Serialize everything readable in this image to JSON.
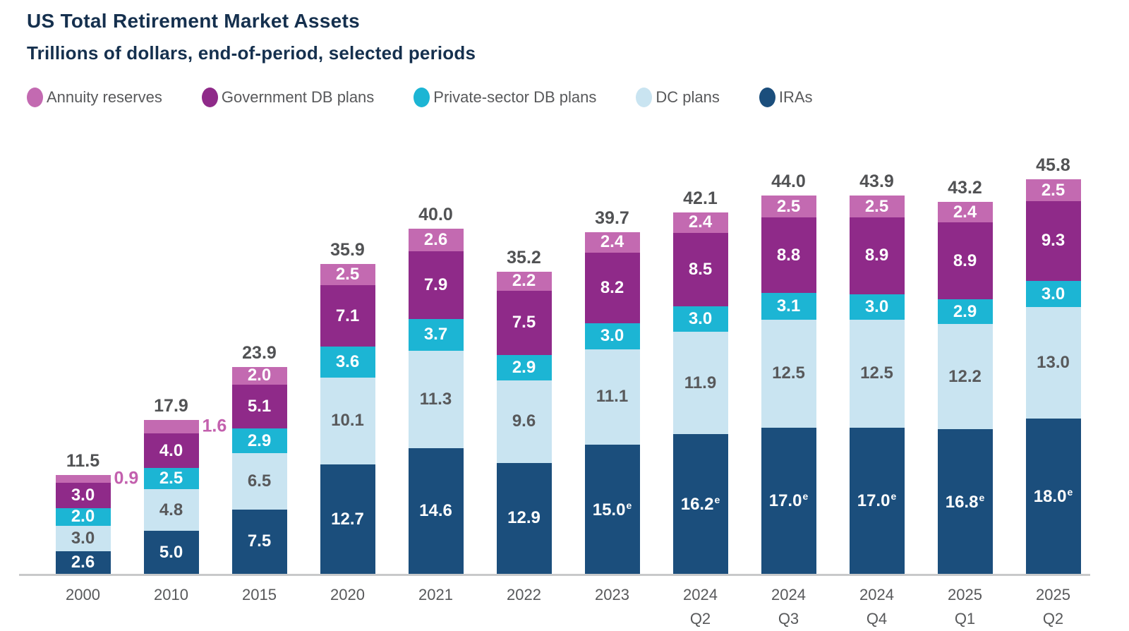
{
  "header": {
    "title": "US Total Retirement Market Assets",
    "subtitle": "Trillions of dollars, end-of-period, selected periods"
  },
  "colors": {
    "title_text": "#15304e",
    "axis_text": "#58595b",
    "total_label_text": "#515254",
    "axis_line": "#c8c9ca",
    "annuity_pink": "#c36ab1",
    "government_purple": "#8f2a89",
    "private_db_cyan": "#1cb5d4",
    "dc_light_blue": "#c9e4f1",
    "ira_navy": "#1b4e7c"
  },
  "chart_data": {
    "type": "bar",
    "stacked": true,
    "title": "US Total Retirement Market Assets",
    "subtitle": "Trillions of dollars, end-of-period, selected periods",
    "unit": "trillions of US dollars",
    "legend_position": "top",
    "grid": false,
    "ylim": [
      0,
      46
    ],
    "categories": [
      [
        "2000"
      ],
      [
        "2010"
      ],
      [
        "2015"
      ],
      [
        "2020"
      ],
      [
        "2021"
      ],
      [
        "2022"
      ],
      [
        "2023"
      ],
      [
        "2024",
        "Q2"
      ],
      [
        "2024",
        "Q3"
      ],
      [
        "2024",
        "Q4"
      ],
      [
        "2025",
        "Q1"
      ],
      [
        "2025",
        "Q2"
      ]
    ],
    "totals": [
      "11.5",
      "17.9",
      "23.9",
      "35.9",
      "40.0",
      "35.2",
      "39.7",
      "42.1",
      "44.0",
      "43.9",
      "43.2",
      "45.8"
    ],
    "series": [
      {
        "name": "Annuity reserves",
        "color": "#c36ab1",
        "label_color": "#ffffff",
        "outside_label_color": "#c360ae",
        "outside_label_indices": [
          0,
          1
        ],
        "values": [
          0.9,
          1.6,
          2.0,
          2.5,
          2.6,
          2.2,
          2.4,
          2.4,
          2.5,
          2.5,
          2.4,
          2.5
        ]
      },
      {
        "name": "Government DB plans",
        "color": "#8f2a89",
        "label_color": "#ffffff",
        "values": [
          3.0,
          4.0,
          5.1,
          7.1,
          7.9,
          7.5,
          8.2,
          8.5,
          8.8,
          8.9,
          8.9,
          9.3
        ]
      },
      {
        "name": "Private-sector DB plans",
        "color": "#1cb5d4",
        "label_color": "#ffffff",
        "values": [
          2.0,
          2.5,
          2.9,
          3.6,
          3.7,
          2.9,
          3.0,
          3.0,
          3.1,
          3.0,
          2.9,
          3.0
        ]
      },
      {
        "name": "DC plans",
        "color": "#c9e4f1",
        "label_color": "#58595b",
        "values": [
          3.0,
          4.8,
          6.5,
          10.1,
          11.3,
          9.6,
          11.1,
          11.9,
          12.5,
          12.5,
          12.2,
          13.0
        ]
      },
      {
        "name": "IRAs",
        "color": "#1b4e7c",
        "label_color": "#ffffff",
        "estimate_suffix": "e",
        "estimated_indices": [
          6,
          7,
          8,
          9,
          10,
          11
        ],
        "values": [
          2.6,
          5.0,
          7.5,
          12.7,
          14.6,
          12.9,
          15.0,
          16.2,
          17.0,
          17.0,
          16.8,
          18.0
        ]
      }
    ]
  }
}
